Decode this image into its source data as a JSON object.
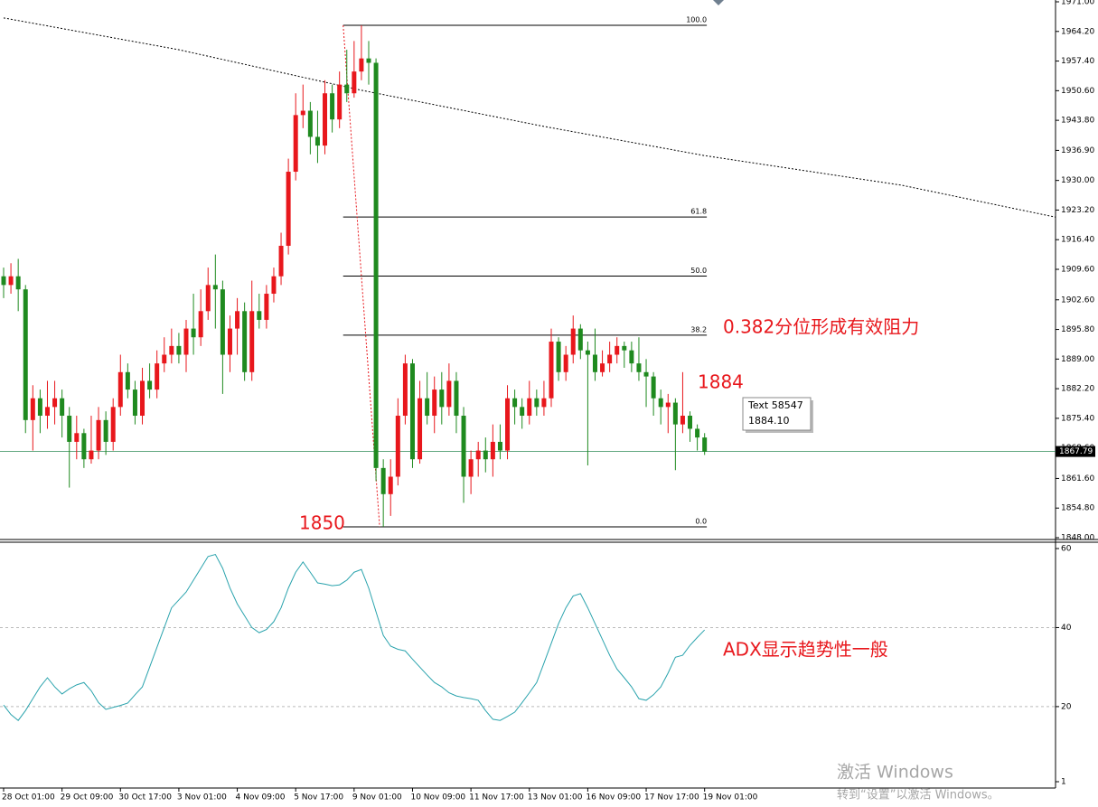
{
  "chart_data": [
    {
      "type": "candlestick",
      "categories": [
        "28 Oct 01:00",
        null,
        null,
        null,
        null,
        null,
        null,
        null,
        "29 Oct 09:00",
        null,
        null,
        null,
        null,
        null,
        null,
        null,
        "30 Oct 17:00",
        null,
        null,
        null,
        null,
        null,
        null,
        null,
        "3 Nov 01:00",
        null,
        null,
        null,
        null,
        null,
        null,
        null,
        "4 Nov 09:00",
        null,
        null,
        null,
        null,
        null,
        null,
        null,
        "5 Nov 17:00",
        null,
        null,
        null,
        null,
        null,
        null,
        null,
        "9 Nov 01:00",
        null,
        null,
        null,
        null,
        null,
        null,
        null,
        "10 Nov 09:00",
        null,
        null,
        null,
        null,
        null,
        null,
        null,
        "11 Nov 17:00",
        null,
        null,
        null,
        null,
        null,
        null,
        null,
        "13 Nov 01:00",
        null,
        null,
        null,
        null,
        null,
        null,
        null,
        "16 Nov 09:00",
        null,
        null,
        null,
        null,
        null,
        null,
        null,
        "17 Nov 17:00",
        null,
        null,
        null,
        null,
        null,
        null,
        null,
        "19 Nov 01:00"
      ],
      "open": [
        1908,
        1906,
        1908,
        1905,
        1875,
        1880,
        1876,
        1878,
        1880,
        1876,
        1870,
        1872,
        1866,
        1868,
        1875,
        1870,
        1878,
        1886,
        1882,
        1876,
        1884,
        1882,
        1888,
        1890,
        1892,
        1890,
        1896,
        1894,
        1900,
        1906,
        1905,
        1890,
        1896,
        1900,
        1886,
        1900,
        1898,
        1904,
        1908,
        1915,
        1932,
        1945,
        1946,
        1940,
        1938,
        1950,
        1944,
        1952,
        1950,
        1955,
        1958,
        1957,
        1864,
        1858,
        1862,
        1876,
        1888,
        1866,
        1880,
        1876,
        1882,
        1878,
        1884,
        1876,
        1862,
        1866,
        1868,
        1866,
        1870,
        1868,
        1880,
        1878,
        1876,
        1880,
        1878,
        1880,
        1893,
        1886,
        1890,
        1896,
        1891,
        1890,
        1886,
        1888,
        1890,
        1892,
        1891,
        1888,
        1886,
        1885,
        1880,
        1878,
        1879,
        1874,
        1876,
        1873,
        1871
      ],
      "high": [
        1910,
        1911,
        1912,
        1906,
        1883,
        1882,
        1884,
        1884,
        1882,
        1878,
        1876,
        1873,
        1876,
        1878,
        1877,
        1880,
        1890,
        1888,
        1884,
        1887,
        1888,
        1891,
        1894,
        1896,
        1895,
        1898,
        1904,
        1905,
        1910,
        1913,
        1907,
        1899,
        1903,
        1902,
        1907,
        1904,
        1906,
        1910,
        1918,
        1935,
        1950,
        1952,
        1948,
        1946,
        1953,
        1952,
        1955,
        1960,
        1962,
        1965.6,
        1962,
        1958,
        1866,
        1866,
        1880,
        1890,
        1889,
        1884,
        1886,
        1885,
        1886,
        1888,
        1886,
        1878,
        1868,
        1870,
        1871,
        1874,
        1874,
        1883,
        1882,
        1880,
        1884,
        1882,
        1884,
        1896,
        1894,
        1892,
        1899,
        1897,
        1893,
        1896,
        1891,
        1893,
        1894,
        1893,
        1893,
        1894,
        1889,
        1886,
        1882,
        1881,
        1880,
        1886,
        1877,
        1874,
        1872
      ],
      "low": [
        1903,
        1904,
        1900,
        1872,
        1868,
        1872,
        1873,
        1874,
        1871,
        1859.5,
        1866,
        1864,
        1865,
        1866,
        1867,
        1868,
        1876,
        1880,
        1874,
        1874,
        1880,
        1880,
        1886,
        1888,
        1888,
        1886,
        1890,
        1892,
        1898,
        1896,
        1881,
        1886,
        1890,
        1884,
        1884,
        1896,
        1896,
        1902,
        1906,
        1913,
        1930,
        1942,
        1936,
        1934,
        1936,
        1941,
        1942,
        1948,
        1949,
        1953,
        1952,
        1861,
        1850.5,
        1853,
        1860,
        1874,
        1864,
        1865,
        1874,
        1872,
        1874,
        1876,
        1872,
        1856,
        1858,
        1862,
        1863,
        1862,
        1866,
        1866,
        1874,
        1873,
        1874,
        1876,
        1876,
        1878,
        1884,
        1884,
        1888,
        1889,
        1864.6,
        1884,
        1885,
        1886,
        1888,
        1887,
        1886,
        1884,
        1878,
        1876,
        1874,
        1872,
        1863.5,
        1872,
        1870,
        1868,
        1867
      ],
      "close": [
        1906,
        1908,
        1905,
        1875,
        1880,
        1876,
        1878,
        1880,
        1876,
        1870,
        1872,
        1866,
        1868,
        1875,
        1870,
        1878,
        1886,
        1882,
        1876,
        1884,
        1882,
        1888,
        1890,
        1892,
        1890,
        1896,
        1894,
        1900,
        1906,
        1905,
        1890,
        1896,
        1900,
        1886,
        1900,
        1898,
        1904,
        1908,
        1915,
        1932,
        1945,
        1946,
        1940,
        1938,
        1950,
        1944,
        1952,
        1950,
        1955,
        1958,
        1957,
        1864,
        1858,
        1862,
        1876,
        1888,
        1866,
        1880,
        1876,
        1882,
        1878,
        1884,
        1876,
        1862,
        1866,
        1868,
        1866,
        1870,
        1868,
        1880,
        1878,
        1876,
        1880,
        1878,
        1880,
        1893,
        1886,
        1890,
        1896,
        1891,
        1890,
        1886,
        1888,
        1890,
        1892,
        1891,
        1888,
        1886,
        1885,
        1880,
        1878,
        1879,
        1874,
        1876,
        1873,
        1871,
        1867.79
      ],
      "up_color": "#e8171c",
      "down_color": "#1f8a1f",
      "moving_average": {
        "x": [
          0,
          24,
          49,
          74,
          96,
          123,
          144
        ],
        "values": [
          1967.3,
          1960,
          1950.7,
          1942.4,
          1935.7,
          1928.9,
          1921.6
        ]
      },
      "fib_levels": [
        {
          "level": "100.0",
          "price": 1965.6
        },
        {
          "level": "61.8",
          "price": 1921.6
        },
        {
          "level": "50.0",
          "price": 1908.05
        },
        {
          "level": "38.2",
          "price": 1894.5
        },
        {
          "level": "0.0",
          "price": 1850.5
        }
      ],
      "ylim": [
        1848,
        1971
      ],
      "yticks": [
        {
          "value": 1971,
          "label": "1971.00"
        },
        {
          "value": 1964.2,
          "label": "1964.20"
        },
        {
          "value": 1957.4,
          "label": "1957.40"
        },
        {
          "value": 1950.6,
          "label": "1950.60"
        },
        {
          "value": 1943.8,
          "label": "1943.80"
        },
        {
          "value": 1936.9,
          "label": "1936.90"
        },
        {
          "value": 1930,
          "label": "1930.00"
        },
        {
          "value": 1923.2,
          "label": "1923.20"
        },
        {
          "value": 1916.4,
          "label": "1916.40"
        },
        {
          "value": 1909.6,
          "label": "1909.60"
        },
        {
          "value": 1902.6,
          "label": "1902.60"
        },
        {
          "value": 1895.8,
          "label": "1895.80"
        },
        {
          "value": 1889,
          "label": "1889.00"
        },
        {
          "value": 1882.2,
          "label": "1882.20"
        },
        {
          "value": 1875.4,
          "label": "1875.40"
        },
        {
          "value": 1868.6,
          "label": "1868.60"
        },
        {
          "value": 1861.6,
          "label": "1861.60"
        },
        {
          "value": 1854.8,
          "label": "1854.80"
        },
        {
          "value": 1848,
          "label": "1848.00"
        }
      ],
      "annotations": [
        "0.382分位形成有效阻力",
        "1884",
        "1850"
      ],
      "tooltip": [
        "Text 58547",
        "1884.10"
      ]
    },
    {
      "type": "line",
      "values": [
        20.4,
        18,
        16.5,
        19,
        22,
        25,
        27.3,
        25,
        23.2,
        24.5,
        25.5,
        26.1,
        24,
        21,
        19.3,
        19.8,
        20.3,
        20.9,
        23,
        25,
        30,
        35,
        40,
        45,
        47,
        49,
        52,
        55,
        58,
        58.5,
        55,
        50,
        46,
        43,
        40,
        38.7,
        39.5,
        41.5,
        45,
        50,
        54,
        56.6,
        54,
        51.3,
        51,
        50.6,
        50.8,
        52,
        54,
        54.7,
        50,
        44,
        38,
        35.3,
        34.5,
        34.1,
        32,
        30,
        28,
        26.1,
        25,
        23.5,
        22.7,
        22.3,
        22,
        21.6,
        19,
        16.8,
        16.5,
        17.5,
        18.6,
        21,
        23.5,
        26.1,
        31,
        36,
        41,
        45,
        48,
        48.6,
        45,
        41,
        37,
        33,
        29.5,
        27.3,
        25,
        22,
        21.6,
        23,
        25,
        28.5,
        32.5,
        33,
        35.5,
        37.5,
        39.4
      ],
      "color": "#2aa3ad",
      "ylim": [
        1,
        60
      ],
      "yticks": [
        60,
        40,
        20,
        1
      ],
      "grid": true,
      "annotations": [
        "ADX显示趋势性一般"
      ]
    }
  ],
  "os_watermark": [
    "激活 Windows",
    "转到“设置”以激活 Windows。"
  ]
}
